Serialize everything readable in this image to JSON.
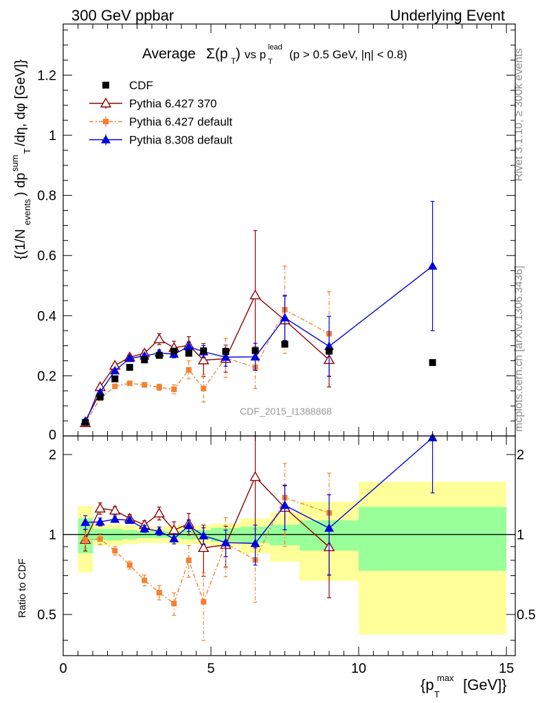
{
  "header": {
    "left": "300 GeV ppbar",
    "right": "Underlying Event",
    "title_prefix": "Average",
    "title_rest": "vs p",
    "title_cut": "(p  > 0.5 GeV, |η| < 0.8)"
  },
  "side_labels": {
    "rivet": "Rivet 3.1.10, ≥ 300k events",
    "mcplots": "mcplots.cern.ch [arXiv:1306.3436]"
  },
  "watermark": "CDF_2015_I1388868",
  "chart_data": {
    "type": "scatter",
    "title": "Average Σ(pT) vs pT lead (pT > 0.5 GeV, |η| < 0.8)",
    "xlabel": "{pT max [GeV]}",
    "ylabel": "{(1/Nevents) dpT sum/dη, dφ [GeV]}",
    "ratio_ylabel": "Ratio to CDF",
    "xlim": [
      0,
      15.3
    ],
    "ylim": [
      0,
      1.37
    ],
    "ratio_ylim": [
      0.35,
      2.35
    ],
    "ratio_log": true,
    "xticks": [
      0,
      5,
      10,
      15
    ],
    "yticks": [
      0,
      0.2,
      0.4,
      0.6,
      0.8,
      1,
      1.2
    ],
    "ratio_yticks": [
      0.5,
      1,
      2
    ],
    "x_edges": [
      0.5,
      1,
      1.5,
      2,
      2.5,
      3,
      3.5,
      4,
      4.5,
      5,
      6,
      7,
      8,
      10,
      15
    ],
    "x": [
      0.75,
      1.25,
      1.75,
      2.25,
      2.75,
      3.25,
      3.75,
      4.25,
      4.75,
      5.5,
      6.5,
      7.5,
      9.0,
      12.5
    ],
    "cdf": {
      "name": "CDF",
      "color": "#000000",
      "values": [
        0.045,
        0.13,
        0.19,
        0.228,
        0.253,
        0.268,
        0.282,
        0.275,
        0.283,
        0.281,
        0.284,
        0.305,
        0.282,
        0.244
      ],
      "band_stat": [
        0.15,
        0.05,
        0.05,
        0.04,
        0.03,
        0.03,
        0.03,
        0.04,
        0.04,
        0.06,
        0.07,
        0.09,
        0.13,
        0.27
      ],
      "band_tot": [
        0.28,
        0.09,
        0.09,
        0.08,
        0.07,
        0.07,
        0.08,
        0.08,
        0.08,
        0.1,
        0.15,
        0.21,
        0.33,
        0.58
      ]
    },
    "series": [
      {
        "name": "Pythia 6.427 370",
        "color": "#8b0000",
        "marker": "triangle-open",
        "dash": "",
        "x": [
          0.75,
          1.25,
          1.75,
          2.25,
          2.75,
          3.25,
          3.75,
          4.25,
          4.75,
          5.5,
          6.5,
          7.5,
          9.0
        ],
        "values": [
          0.043,
          0.163,
          0.234,
          0.262,
          0.275,
          0.322,
          0.293,
          0.302,
          0.252,
          0.257,
          0.468,
          0.385,
          0.253
        ],
        "errors": [
          0.004,
          0.008,
          0.008,
          0.009,
          0.01,
          0.018,
          0.022,
          0.028,
          0.055,
          0.045,
          0.215,
          0.08,
          0.09
        ]
      },
      {
        "name": "Pythia 6.427 default",
        "color": "#f4802f",
        "marker": "square-filled",
        "dash": "6,3,2,3",
        "x": [
          0.75,
          1.25,
          1.75,
          2.25,
          2.75,
          3.25,
          3.75,
          4.25,
          4.75,
          5.5,
          6.5,
          7.5,
          9.0
        ],
        "values": [
          0.043,
          0.125,
          0.165,
          0.175,
          0.17,
          0.162,
          0.155,
          0.22,
          0.158,
          0.26,
          0.228,
          0.42,
          0.34
        ],
        "errors": [
          0.003,
          0.006,
          0.006,
          0.006,
          0.008,
          0.01,
          0.015,
          0.03,
          0.045,
          0.065,
          0.07,
          0.145,
          0.14
        ]
      },
      {
        "name": "Pythia 8.308 default",
        "color": "#0000dd",
        "marker": "triangle-filled",
        "dash": "",
        "x": [
          0.75,
          1.25,
          1.75,
          2.25,
          2.75,
          3.25,
          3.75,
          4.25,
          4.75,
          5.5,
          6.5,
          7.5,
          9.0,
          12.5
        ],
        "values": [
          0.05,
          0.145,
          0.217,
          0.258,
          0.266,
          0.276,
          0.272,
          0.297,
          0.28,
          0.262,
          0.263,
          0.393,
          0.298,
          0.565
        ],
        "errors": [
          0.003,
          0.005,
          0.006,
          0.007,
          0.008,
          0.01,
          0.012,
          0.015,
          0.02,
          0.03,
          0.045,
          0.075,
          0.1,
          0.215
        ]
      }
    ],
    "legend_position": "top-left"
  }
}
